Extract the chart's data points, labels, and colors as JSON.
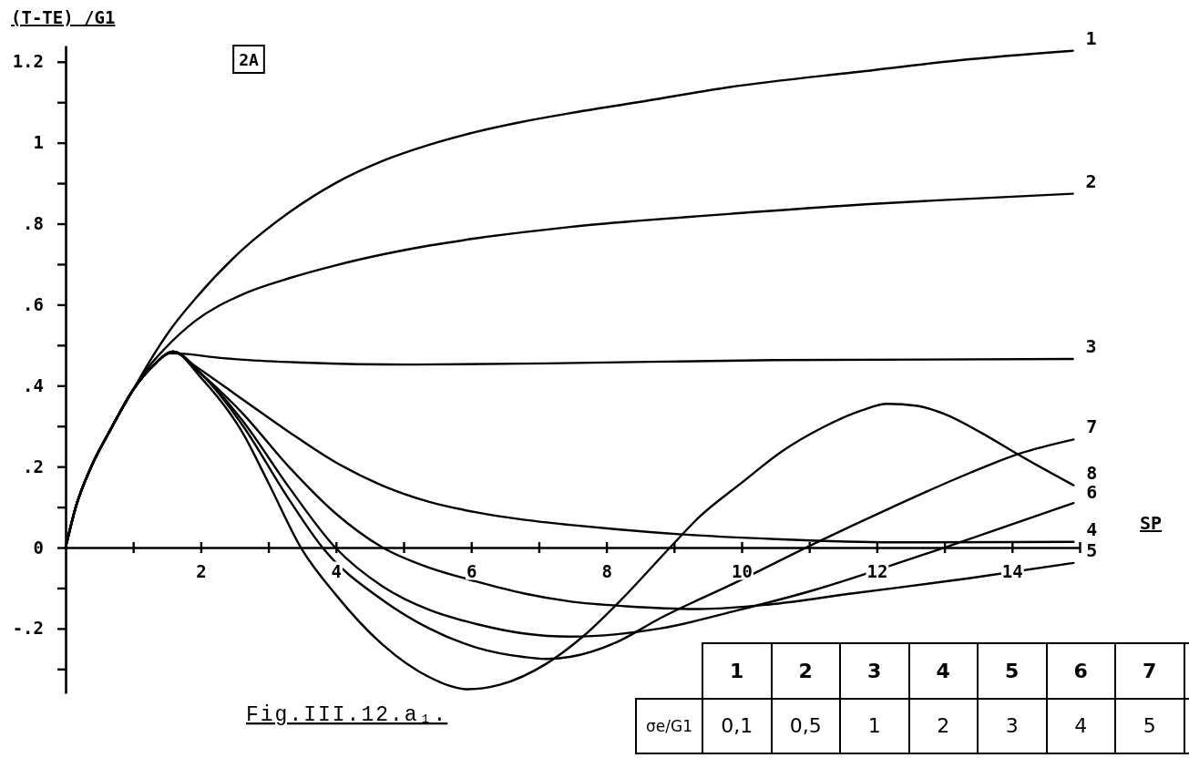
{
  "chart_data": {
    "type": "line",
    "title": "Fig.III.12.a₁.",
    "xlabel": "SP",
    "ylabel": "(T-TE) /G1",
    "annotations": [
      "2A",
      "σe/G1",
      "0,1",
      "0,5",
      "1",
      "2",
      "3",
      "4",
      "5"
    ],
    "xlim": [
      0,
      15
    ],
    "xticks": [
      {
        "value": 1,
        "label": null
      },
      2,
      {
        "value": 3,
        "label": null
      },
      4,
      {
        "value": 5,
        "label": null
      },
      6,
      {
        "value": 7,
        "label": null
      },
      8,
      {
        "value": 9,
        "label": null
      },
      10,
      {
        "value": 11,
        "label": null
      },
      12,
      {
        "value": 13,
        "label": null
      },
      14,
      {
        "value": 15,
        "label": null
      }
    ],
    "ylim": [
      -0.36,
      1.24
    ],
    "yticks": [
      1.2,
      {
        "value": 1.1,
        "label": null
      },
      1,
      {
        "value": 0.9,
        "label": null
      },
      {
        "value": 0.8,
        "label": ".8"
      },
      {
        "value": 0.7,
        "label": null
      },
      {
        "value": 0.6,
        "label": ".6"
      },
      {
        "value": 0.5,
        "label": null
      },
      {
        "value": 0.4,
        "label": ".4"
      },
      {
        "value": 0.3,
        "label": null
      },
      {
        "value": 0.2,
        "label": ".2"
      },
      {
        "value": 0.1,
        "label": null
      },
      0,
      {
        "value": -0.1,
        "label": null
      },
      {
        "value": -0.2,
        "label": "-.2"
      },
      {
        "value": -0.3,
        "label": null
      }
    ],
    "series": [
      {
        "name": "1",
        "color": "#000000",
        "x": [
          0,
          0.15,
          0.38,
          0.66,
          1.0,
          1.225,
          1.57,
          1.92,
          2.61,
          3.3,
          3.99,
          4.69,
          5.38,
          6.08,
          6.77,
          7.46,
          8.46,
          9.81,
          11.83,
          13.18,
          14.9
        ],
        "values": [
          0,
          0.1,
          0.2,
          0.29,
          0.39,
          0.455,
          0.543,
          0.615,
          0.735,
          0.827,
          0.9,
          0.955,
          0.995,
          1.027,
          1.052,
          1.073,
          1.1,
          1.137,
          1.177,
          1.203,
          1.227
        ]
      },
      {
        "name": "2",
        "color": "#000000",
        "x": [
          0,
          0.15,
          0.38,
          0.66,
          1.0,
          1.2,
          1.46,
          1.92,
          2.61,
          3.3,
          3.99,
          4.69,
          5.38,
          6.08,
          6.77,
          7.46,
          8.46,
          9.81,
          11.83,
          13.18,
          14.9
        ],
        "values": [
          0,
          0.1,
          0.2,
          0.29,
          0.39,
          0.44,
          0.49,
          0.56,
          0.625,
          0.665,
          0.697,
          0.724,
          0.746,
          0.764,
          0.779,
          0.792,
          0.807,
          0.824,
          0.848,
          0.86,
          0.874
        ]
      },
      {
        "name": "3",
        "color": "#000000",
        "x": [
          0,
          0.15,
          0.38,
          0.66,
          1.0,
          1.3,
          1.55,
          1.8,
          2.2,
          2.63,
          3.52,
          5.09,
          7.12,
          10.48,
          14.9
        ],
        "values": [
          0,
          0.1,
          0.2,
          0.29,
          0.39,
          0.45,
          0.48,
          0.478,
          0.47,
          0.464,
          0.457,
          0.452,
          0.455,
          0.463,
          0.466
        ]
      },
      {
        "name": "4",
        "color": "#000000",
        "x": [
          0,
          0.15,
          0.38,
          0.66,
          1.0,
          1.3,
          1.59,
          1.92,
          2.61,
          3.3,
          3.99,
          4.69,
          5.38,
          6.08,
          6.77,
          7.46,
          8.16,
          9.08,
          10.5,
          12.23,
          14.91
        ],
        "values": [
          0,
          0.1,
          0.2,
          0.29,
          0.39,
          0.45,
          0.484,
          0.448,
          0.367,
          0.286,
          0.211,
          0.153,
          0.113,
          0.087,
          0.069,
          0.056,
          0.045,
          0.033,
          0.021,
          0.013,
          0.014
        ]
      },
      {
        "name": "5",
        "color": "#000000",
        "x": [
          0,
          0.15,
          0.38,
          0.66,
          1.0,
          1.3,
          1.59,
          2.0,
          2.61,
          3.3,
          3.99,
          4.69,
          5.38,
          6.08,
          6.77,
          7.46,
          8.3,
          9.37,
          10.39,
          11.65,
          13.36,
          14.91
        ],
        "values": [
          0,
          0.1,
          0.2,
          0.29,
          0.39,
          0.45,
          0.484,
          0.43,
          0.333,
          0.2,
          0.085,
          0.0,
          -0.05,
          -0.084,
          -0.113,
          -0.133,
          -0.145,
          -0.152,
          -0.141,
          -0.113,
          -0.076,
          -0.038
        ]
      },
      {
        "name": "6",
        "color": "#000000",
        "x": [
          0,
          0.15,
          0.38,
          0.66,
          1.0,
          1.3,
          1.59,
          2.0,
          2.61,
          3.3,
          3.99,
          4.69,
          5.38,
          6.08,
          6.77,
          7.46,
          8.16,
          8.79,
          9.94,
          11.09,
          12.23,
          13.0,
          14.91
        ],
        "values": [
          0,
          0.1,
          0.2,
          0.29,
          0.39,
          0.45,
          0.484,
          0.43,
          0.315,
          0.15,
          0.0,
          -0.096,
          -0.154,
          -0.189,
          -0.212,
          -0.22,
          -0.214,
          -0.2,
          -0.155,
          -0.104,
          -0.043,
          0.0,
          0.11
        ]
      },
      {
        "name": "7",
        "color": "#000000",
        "x": [
          0,
          0.15,
          0.38,
          0.66,
          1.0,
          1.3,
          1.59,
          2.0,
          2.61,
          3.3,
          3.8,
          4.69,
          5.38,
          6.08,
          6.77,
          7.1,
          7.46,
          8.16,
          8.79,
          9.94,
          11.09,
          12.23,
          13.37,
          14.11,
          14.91
        ],
        "values": [
          0,
          0.1,
          0.2,
          0.29,
          0.39,
          0.45,
          0.484,
          0.43,
          0.304,
          0.12,
          0.0,
          -0.13,
          -0.2,
          -0.247,
          -0.27,
          -0.275,
          -0.27,
          -0.233,
          -0.175,
          -0.084,
          0.011,
          0.1,
          0.184,
          0.232,
          0.267
        ]
      },
      {
        "name": "8",
        "color": "#000000",
        "x": [
          0,
          0.15,
          0.38,
          0.66,
          1.0,
          1.3,
          1.59,
          2.0,
          2.61,
          3.0,
          3.48,
          3.99,
          4.69,
          5.38,
          5.95,
          6.42,
          7.12,
          7.65,
          8.23,
          8.94,
          9.37,
          10.0,
          10.6,
          11.19,
          11.78,
          12.15,
          12.6,
          13.0,
          13.54,
          14.14,
          14.91
        ],
        "values": [
          0,
          0.1,
          0.2,
          0.29,
          0.39,
          0.45,
          0.484,
          0.42,
          0.286,
          0.16,
          0.0,
          -0.115,
          -0.24,
          -0.32,
          -0.35,
          -0.339,
          -0.286,
          -0.22,
          -0.127,
          0.0,
          0.075,
          0.16,
          0.238,
          0.296,
          0.339,
          0.355,
          0.35,
          0.33,
          0.284,
          0.225,
          0.154
        ]
      }
    ]
  }
}
